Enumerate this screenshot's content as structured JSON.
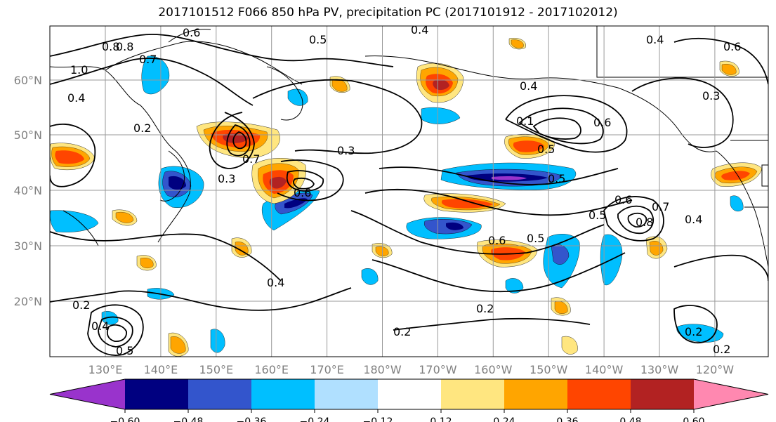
{
  "title": "2017101512 F066 850 hPa PV, precipitation PC (2017101912 - 2017102012)",
  "map": {
    "lat_ticks": [
      "20°N",
      "30°N",
      "40°N",
      "50°N",
      "60°N"
    ],
    "lon_ticks": [
      "130°E",
      "140°E",
      "150°E",
      "160°E",
      "170°E",
      "180°W",
      "170°W",
      "160°W",
      "150°W",
      "140°W",
      "130°W",
      "120°W"
    ],
    "contour_labels": [
      "0.8",
      "0.8",
      "0.6",
      "0.5",
      "0.4",
      "0.4",
      "0.7",
      "1.0",
      "0.4",
      "0.2",
      "0.3",
      "0.3",
      "0.6",
      "0.5",
      "0.7",
      "0.3",
      "0.5",
      "0.6",
      "0.6",
      "0.8",
      "0.5",
      "0.6",
      "0.5",
      "0.7",
      "0.4",
      "0.2",
      "0.2",
      "0.2",
      "0.2",
      "0.4",
      "0.5",
      "0.2",
      "0.4",
      "0.6",
      "0.1",
      "0.4"
    ],
    "colors": {
      "land_line": "#000000",
      "grid": "#999999"
    }
  },
  "colorbar": {
    "tick_labels": [
      "−0.60",
      "−0.48",
      "−0.36",
      "−0.24",
      "−0.12",
      "0.12",
      "0.24",
      "0.36",
      "0.48",
      "0.60"
    ],
    "bins": [
      "#9933cc",
      "#000080",
      "#3355cc",
      "#00bfff",
      "#b0e0ff",
      "#ffffff",
      "#ffe680",
      "#ffa500",
      "#ff4500",
      "#b22222",
      "#ff88b0"
    ]
  }
}
